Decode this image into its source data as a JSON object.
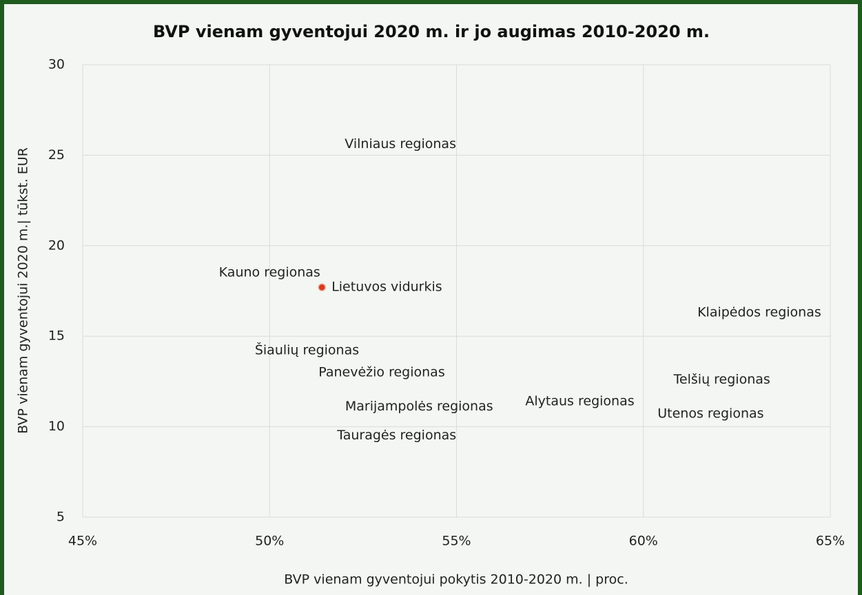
{
  "chart_data": {
    "type": "scatter",
    "title": "BVP vienam gyventojui 2020 m. ir jo augimas 2010-2020 m.",
    "x_label": "BVP vienam gyventojui pokytis 2010-2020 m. | proc.",
    "y_label": "BVP vienam gyventojui 2020 m.| tūkst. EUR",
    "xlim": [
      45,
      65
    ],
    "xticks": [
      {
        "value": 45,
        "label": "45%"
      },
      {
        "value": 50,
        "label": "50%"
      },
      {
        "value": 55,
        "label": "55%"
      },
      {
        "value": 60,
        "label": "60%"
      },
      {
        "value": 65,
        "label": "65%"
      }
    ],
    "ylim": [
      5,
      30
    ],
    "yticks": [
      5,
      10,
      15,
      20,
      25,
      30
    ],
    "grid": true,
    "points": [
      {
        "label": "Vilniaus regionas",
        "x": 53.5,
        "y": 25.6
      },
      {
        "label": "Kauno regionas",
        "x": 50.0,
        "y": 18.5
      },
      {
        "label": "Klaipėdos regionas",
        "x": 63.1,
        "y": 16.3
      },
      {
        "label": "Šiaulių regionas",
        "x": 51.0,
        "y": 14.2
      },
      {
        "label": "Panevėžio regionas",
        "x": 53.0,
        "y": 13.0
      },
      {
        "label": "Telšių regionas",
        "x": 62.1,
        "y": 12.6
      },
      {
        "label": "Alytaus regionas",
        "x": 58.3,
        "y": 11.4
      },
      {
        "label": "Marijampolės regionas",
        "x": 54.0,
        "y": 11.1
      },
      {
        "label": "Utenos regionas",
        "x": 61.8,
        "y": 10.7
      },
      {
        "label": "Tauragės regionas",
        "x": 53.4,
        "y": 9.5
      }
    ],
    "highlight": {
      "label": "Lietuvos vidurkis",
      "x": 51.4,
      "y": 17.7,
      "color": "#d63a1f"
    }
  }
}
